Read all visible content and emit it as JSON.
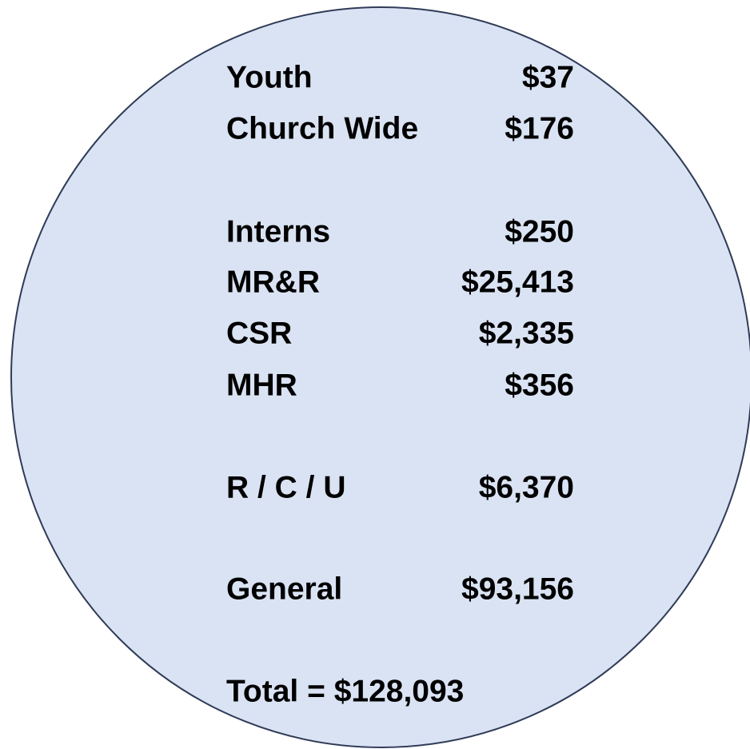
{
  "rows": [
    {
      "label": "Youth",
      "amount": "$37"
    },
    {
      "label": "Church Wide",
      "amount": "$176"
    },
    {
      "label": "Interns",
      "amount": "$250"
    },
    {
      "label": "MR&R",
      "amount": "$25,413"
    },
    {
      "label": "CSR",
      "amount": "$2,335"
    },
    {
      "label": "MHR",
      "amount": "$356"
    },
    {
      "label": "R / C / U",
      "amount": "$6,370"
    },
    {
      "label": "General",
      "amount": "$93,156"
    }
  ],
  "total": "Total = $128,093"
}
